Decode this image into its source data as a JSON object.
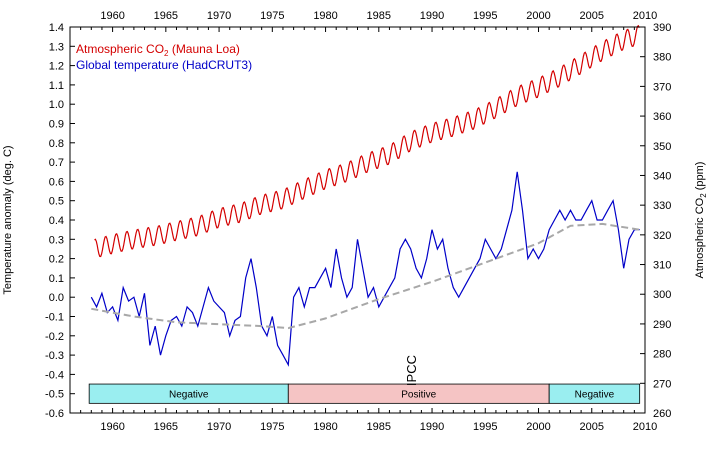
{
  "chart_data": {
    "type": "line",
    "xlim": [
      1956,
      2010
    ],
    "x_ticks": [
      1960,
      1965,
      1970,
      1975,
      1980,
      1985,
      1990,
      1995,
      2000,
      2005,
      2010
    ],
    "y_left": {
      "label": "Temperature anomaly (deg. C)",
      "lim": [
        -0.6,
        1.4
      ],
      "ticks": [
        -0.6,
        -0.5,
        -0.4,
        -0.3,
        -0.2,
        -0.1,
        0.0,
        0.1,
        0.2,
        0.3,
        0.4,
        0.5,
        0.6,
        0.7,
        0.8,
        0.9,
        1.0,
        1.1,
        1.2,
        1.3,
        1.4
      ],
      "tick_labels": [
        "-0.6",
        "-0.5",
        "-0.4",
        "-0.3",
        "-0.2",
        "-0.1",
        "0.0",
        "0.1",
        "0.2",
        "0.3",
        "0.4",
        "0.5",
        "0.6",
        "0.7",
        "0.8",
        "0.9",
        "1.0",
        "1.1",
        "1.2",
        "1.3",
        "1.4"
      ]
    },
    "y_right": {
      "label_prefix": "Atmospheric CO",
      "label_sub": "2",
      "label_suffix": " (ppm)",
      "lim": [
        260,
        390
      ],
      "ticks": [
        260,
        270,
        280,
        290,
        300,
        310,
        320,
        330,
        340,
        350,
        360,
        370,
        380,
        390
      ]
    },
    "legend": [
      {
        "prefix": "Atmospheric CO",
        "sub": "2",
        "suffix": " (Mauna Loa)",
        "color": "#d40000"
      },
      {
        "prefix": "Global temperature (HadCRUT3)",
        "sub": "",
        "suffix": "",
        "color": "#0000c8"
      }
    ],
    "legend_position": "top-left",
    "series": [
      {
        "name": "Atmospheric CO2 (Mauna Loa)",
        "axis": "right",
        "color": "#d40000",
        "x": [
          1958.3,
          1960,
          1962,
          1964,
          1966,
          1968,
          1970,
          1972,
          1974,
          1976,
          1978,
          1980,
          1982,
          1984,
          1986,
          1988,
          1990,
          1992,
          1994,
          1996,
          1998,
          2000,
          2002,
          2004,
          2006,
          2008,
          2009.5
        ],
        "y": [
          315.3,
          316.9,
          318.5,
          319.6,
          321.3,
          322.9,
          325.7,
          327.4,
          330.2,
          332.0,
          335.4,
          338.7,
          341.1,
          344.4,
          347.0,
          351.5,
          354.4,
          356.4,
          358.9,
          362.6,
          366.7,
          369.6,
          373.2,
          377.5,
          381.9,
          385.6,
          387.4
        ],
        "seasonal_amplitude": 3.2
      },
      {
        "name": "Global temperature (HadCRUT3)",
        "axis": "left",
        "color": "#0000c8",
        "x": [
          1958.0,
          1958.5,
          1959.0,
          1959.5,
          1960.0,
          1960.5,
          1961.0,
          1961.5,
          1962.0,
          1962.5,
          1963.0,
          1963.5,
          1964.0,
          1964.5,
          1965.0,
          1965.5,
          1966.0,
          1966.5,
          1967.0,
          1967.5,
          1968.0,
          1968.5,
          1969.0,
          1969.5,
          1970.0,
          1970.5,
          1971.0,
          1971.5,
          1972.0,
          1972.5,
          1973.0,
          1973.5,
          1974.0,
          1974.5,
          1975.0,
          1975.5,
          1976.0,
          1976.5,
          1977.0,
          1977.5,
          1978.0,
          1978.5,
          1979.0,
          1979.5,
          1980.0,
          1980.5,
          1981.0,
          1981.5,
          1982.0,
          1982.5,
          1983.0,
          1983.5,
          1984.0,
          1984.5,
          1985.0,
          1985.5,
          1986.0,
          1986.5,
          1987.0,
          1987.5,
          1988.0,
          1988.5,
          1989.0,
          1989.5,
          1990.0,
          1990.5,
          1991.0,
          1991.5,
          1992.0,
          1992.5,
          1993.0,
          1993.5,
          1994.0,
          1994.5,
          1995.0,
          1995.5,
          1996.0,
          1996.5,
          1997.0,
          1997.5,
          1998.0,
          1998.5,
          1999.0,
          1999.5,
          2000.0,
          2000.5,
          2001.0,
          2001.5,
          2002.0,
          2002.5,
          2003.0,
          2003.5,
          2004.0,
          2004.5,
          2005.0,
          2005.5,
          2006.0,
          2006.5,
          2007.0,
          2007.5,
          2008.0,
          2008.5,
          2009.0,
          2009.5
        ],
        "y": [
          0.0,
          -0.05,
          0.02,
          -0.08,
          -0.05,
          -0.12,
          0.05,
          -0.02,
          0.0,
          -0.1,
          0.02,
          -0.25,
          -0.15,
          -0.3,
          -0.2,
          -0.12,
          -0.1,
          -0.15,
          -0.05,
          -0.08,
          -0.15,
          -0.05,
          0.05,
          -0.02,
          -0.05,
          -0.08,
          -0.2,
          -0.12,
          -0.1,
          0.1,
          0.2,
          0.05,
          -0.15,
          -0.2,
          -0.1,
          -0.25,
          -0.3,
          -0.35,
          0.0,
          0.05,
          -0.05,
          0.05,
          0.05,
          0.1,
          0.15,
          0.05,
          0.25,
          0.1,
          0.0,
          0.05,
          0.3,
          0.15,
          0.0,
          0.05,
          -0.05,
          0.0,
          0.05,
          0.1,
          0.25,
          0.3,
          0.25,
          0.15,
          0.1,
          0.2,
          0.35,
          0.25,
          0.3,
          0.15,
          0.05,
          0.0,
          0.05,
          0.1,
          0.15,
          0.2,
          0.3,
          0.25,
          0.2,
          0.25,
          0.35,
          0.45,
          0.65,
          0.45,
          0.2,
          0.25,
          0.2,
          0.25,
          0.35,
          0.4,
          0.45,
          0.4,
          0.45,
          0.4,
          0.4,
          0.45,
          0.5,
          0.4,
          0.4,
          0.45,
          0.5,
          0.35,
          0.15,
          0.3,
          0.35,
          0.35
        ]
      },
      {
        "name": "trend",
        "axis": "left",
        "color": "#a8a8a8",
        "dashed": true,
        "x": [
          1958,
          1962,
          1966,
          1970,
          1974,
          1976.5,
          1980,
          1985,
          1990,
          1995,
          2000,
          2003,
          2006,
          2009.5
        ],
        "y": [
          -0.06,
          -0.1,
          -0.13,
          -0.14,
          -0.15,
          -0.16,
          -0.11,
          -0.01,
          0.08,
          0.18,
          0.28,
          0.37,
          0.38,
          0.35
        ]
      }
    ],
    "phases": [
      {
        "label": "Negative",
        "x_start": 1957.8,
        "x_end": 1976.5,
        "color": "#9aeef0"
      },
      {
        "label": "Positive",
        "x_start": 1976.5,
        "x_end": 2001.0,
        "color": "#f5c4c4"
      },
      {
        "label": "Negative",
        "x_start": 2001.0,
        "x_end": 2009.5,
        "color": "#9aeef0"
      }
    ],
    "phase_y_range": [
      -0.55,
      -0.45
    ],
    "annotation": {
      "text": "IPCC",
      "x": 1988.5,
      "y": -0.38
    }
  }
}
